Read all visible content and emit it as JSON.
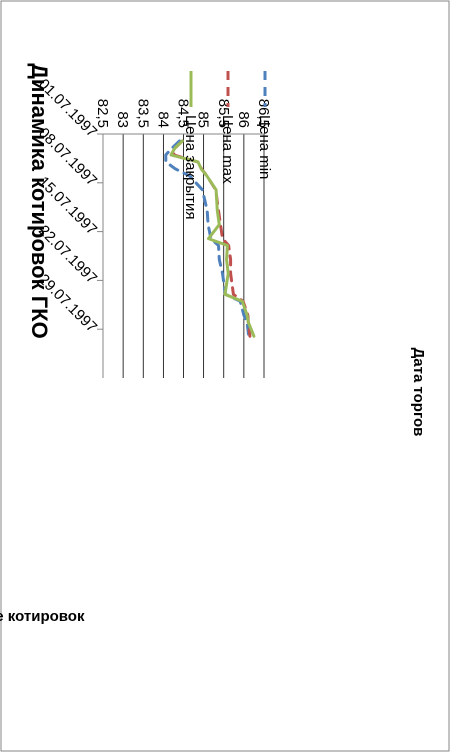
{
  "chart_data": {
    "type": "line",
    "title": "Динамика котировок ГКО",
    "xlabel": "Дата торгов",
    "ylabel": "Значение котировок",
    "ylim": [
      82.5,
      86.5
    ],
    "y_ticks": [
      "86,5",
      "86",
      "85,5",
      "85",
      "84,5",
      "84",
      "83,5",
      "83",
      "82,5"
    ],
    "x_ticks": [
      "01.07.1997",
      "08.07.1997",
      "15.07.1997",
      "22.07.1997",
      "29.07.1997"
    ],
    "x_range_days": [
      0,
      35
    ],
    "grid": true,
    "legend_position": "top",
    "colors": {
      "min": "#4f81bd",
      "max": "#c0504d",
      "close": "#9bbb59",
      "grid": "#000000",
      "border": "#868686"
    },
    "series": [
      {
        "name": "Цена min",
        "style": "dashed",
        "x": [
          "02.07.1997",
          "03.07.1997",
          "04.07.1997",
          "05.07.1997",
          "06.07.1997",
          "07.07.1997",
          "09.07.1997",
          "12.07.1997",
          "14.07.1997",
          "16.07.1997",
          "17.07.1997",
          "19.07.1997",
          "21.07.1997",
          "24.07.1997",
          "25.07.1997",
          "27.07.1997",
          "28.07.1997",
          "30.07.1997"
        ],
        "values": [
          84.4,
          84.22,
          84.06,
          84.06,
          84.3,
          84.65,
          84.97,
          85.09,
          85.11,
          85.18,
          85.37,
          85.39,
          85.47,
          85.54,
          85.91,
          86.0,
          86.08,
          86.12
        ]
      },
      {
        "name": "Цена max",
        "style": "dashed",
        "x": [
          "02.07.1997",
          "03.07.1997",
          "04.07.1997",
          "05.07.1997",
          "06.07.1997",
          "07.07.1997",
          "09.07.1997",
          "12.07.1997",
          "14.07.1997",
          "16.07.1997",
          "17.07.1997",
          "19.07.1997",
          "21.07.1997",
          "24.07.1997",
          "25.07.1997",
          "27.07.1997",
          "28.07.1997",
          "30.07.1997"
        ],
        "values": [
          84.47,
          84.3,
          84.26,
          84.85,
          84.95,
          85.08,
          85.3,
          85.37,
          85.42,
          85.47,
          85.62,
          85.67,
          85.67,
          85.74,
          85.98,
          86.1,
          86.11,
          86.15
        ]
      },
      {
        "name": "Цена закрытия",
        "style": "solid",
        "x": [
          "02.07.1997",
          "03.07.1997",
          "04.07.1997",
          "05.07.1997",
          "06.07.1997",
          "07.07.1997",
          "09.07.1997",
          "12.07.1997",
          "14.07.1997",
          "16.07.1997",
          "17.07.1997",
          "19.07.1997",
          "21.07.1997",
          "24.07.1997",
          "25.07.1997",
          "27.07.1997",
          "28.07.1997",
          "30.07.1997"
        ],
        "values": [
          84.47,
          84.29,
          84.19,
          84.86,
          84.94,
          85.08,
          85.31,
          85.34,
          85.39,
          85.12,
          85.59,
          85.57,
          85.61,
          85.53,
          85.96,
          86.08,
          86.11,
          86.25
        ]
      }
    ]
  }
}
